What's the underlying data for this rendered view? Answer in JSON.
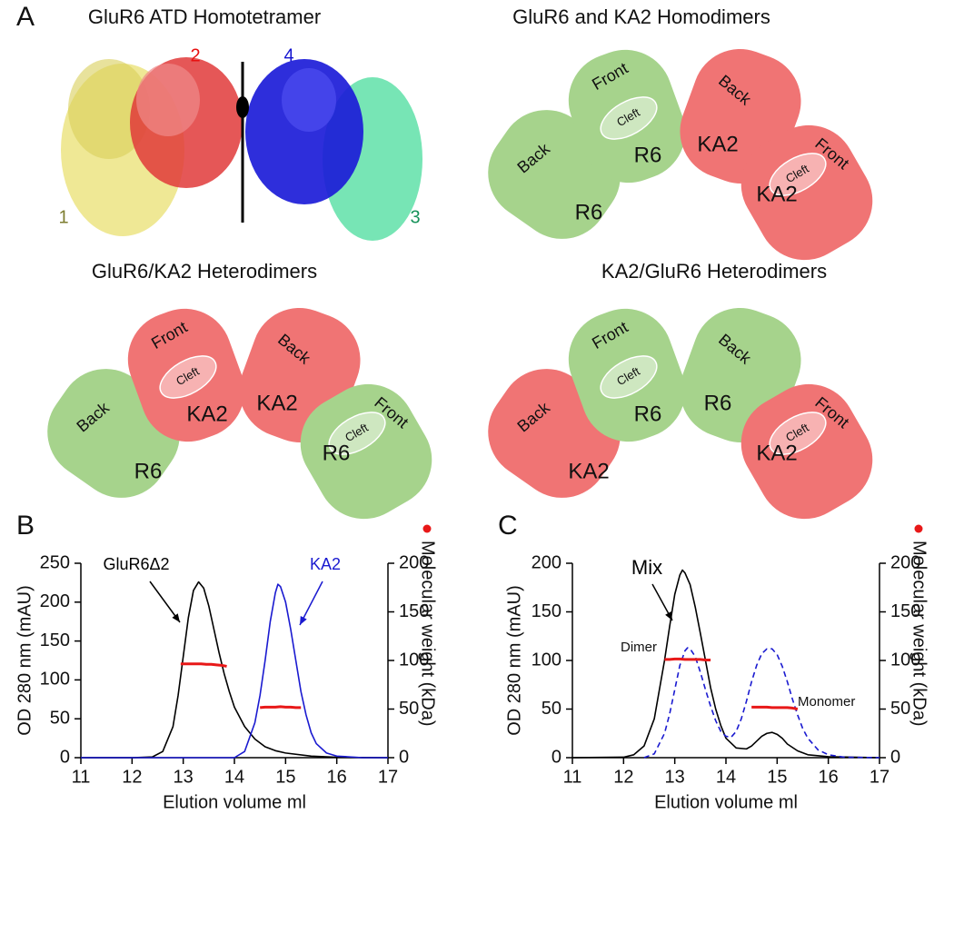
{
  "panel_letters": [
    "A",
    "B",
    "C"
  ],
  "tetramer": {
    "title": "GluR6 ATD Homotetramer",
    "subunits": [
      {
        "label": "1",
        "color": "#7d7d30"
      },
      {
        "label": "2",
        "color": "#e81010"
      },
      {
        "label": "3",
        "color": "#16925a"
      },
      {
        "label": "4",
        "color": "#1414d0"
      }
    ]
  },
  "dimer_panels": [
    {
      "title": "GluR6 and KA2 Homodimers",
      "subunits": [
        {
          "face": "Back",
          "name": "R6",
          "color": "#a6d38c"
        },
        {
          "face": "Front",
          "cleft": "Cleft",
          "name": "R6",
          "color": "#a6d38c"
        },
        {
          "face": "Back",
          "name": "KA2",
          "color": "#f07474"
        },
        {
          "face": "Front",
          "cleft": "Cleft",
          "name": "KA2",
          "color": "#f07474"
        }
      ]
    },
    {
      "title": "GluR6/KA2 Heterodimers",
      "subunits": [
        {
          "face": "Back",
          "name": "R6",
          "color": "#a6d38c"
        },
        {
          "face": "Front",
          "cleft": "Cleft",
          "name": "KA2",
          "color": "#f07474"
        },
        {
          "face": "Back",
          "name": "KA2",
          "color": "#f07474"
        },
        {
          "face": "Front",
          "cleft": "Cleft",
          "name": "R6",
          "color": "#a6d38c"
        }
      ]
    },
    {
      "title": "KA2/GluR6 Heterodimers",
      "subunits": [
        {
          "face": "Back",
          "name": "KA2",
          "color": "#f07474"
        },
        {
          "face": "Front",
          "cleft": "Cleft",
          "name": "R6",
          "color": "#a6d38c"
        },
        {
          "face": "Back",
          "name": "R6",
          "color": "#a6d38c"
        },
        {
          "face": "Front",
          "cleft": "Cleft",
          "name": "KA2",
          "color": "#f07474"
        }
      ]
    }
  ],
  "chart_data": [
    {
      "type": "line",
      "ylabel": "OD 280 nm (mAU)",
      "y2label": "Molecular weight (kDa)",
      "xlabel": "Elution volume ml",
      "xlim": [
        11,
        17
      ],
      "xticks": [
        11,
        12,
        13,
        14,
        15,
        16,
        17
      ],
      "ylim": [
        0,
        250
      ],
      "yticks": [
        0,
        50,
        100,
        150,
        200,
        250
      ],
      "y2lim": [
        0,
        200
      ],
      "y2ticks": [
        0,
        50,
        100,
        150,
        200
      ],
      "series": [
        {
          "name": "GluR6Δ2",
          "color": "#000000",
          "style": "solid",
          "x": [
            11,
            12,
            12.4,
            12.6,
            12.8,
            12.9,
            13.0,
            13.1,
            13.2,
            13.3,
            13.4,
            13.5,
            13.6,
            13.7,
            13.8,
            13.9,
            14.0,
            14.2,
            14.4,
            14.6,
            14.8,
            15.0,
            15.5,
            16.0,
            17
          ],
          "values": [
            0,
            0,
            1,
            8,
            40,
            80,
            130,
            180,
            215,
            226,
            218,
            195,
            165,
            135,
            108,
            85,
            65,
            40,
            24,
            14,
            9,
            6,
            2,
            0.5,
            0
          ]
        },
        {
          "name": "KA2",
          "color": "#1a1ad0",
          "style": "solid",
          "x": [
            11,
            14.0,
            14.2,
            14.4,
            14.5,
            14.6,
            14.7,
            14.8,
            14.85,
            14.9,
            15.0,
            15.1,
            15.2,
            15.3,
            15.4,
            15.5,
            15.6,
            15.8,
            16.0,
            16.5,
            17
          ],
          "values": [
            0,
            0,
            8,
            45,
            80,
            125,
            175,
            212,
            223,
            220,
            200,
            165,
            125,
            85,
            55,
            32,
            18,
            6,
            2,
            0,
            0
          ]
        },
        {
          "color": "#e81818",
          "style": "thick",
          "axis": "y2",
          "x": [
            12.95,
            13.05,
            13.15,
            13.25,
            13.35,
            13.45,
            13.55,
            13.65,
            13.75,
            13.85
          ],
          "values": [
            96.5,
            96.5,
            96.5,
            96.5,
            96.5,
            96,
            96,
            95.5,
            95,
            94
          ]
        },
        {
          "color": "#e81818",
          "style": "thick",
          "axis": "y2",
          "x": [
            14.5,
            14.6,
            14.7,
            14.8,
            14.9,
            15.0,
            15.1,
            15.2,
            15.3
          ],
          "values": [
            51.5,
            52,
            52,
            52,
            52.5,
            52,
            52,
            51.5,
            51.5
          ]
        }
      ],
      "annotations": []
    },
    {
      "type": "line",
      "ylabel": "OD 280 nm (mAU)",
      "y2label": "Molecular weight (kDa)",
      "xlabel": "Elution volume ml",
      "xlim": [
        11,
        17
      ],
      "xticks": [
        11,
        12,
        13,
        14,
        15,
        16,
        17
      ],
      "ylim": [
        0,
        200
      ],
      "yticks": [
        0,
        50,
        100,
        150,
        200
      ],
      "y2lim": [
        0,
        200
      ],
      "y2ticks": [
        0,
        50,
        100,
        150,
        200
      ],
      "series": [
        {
          "name": "Mix",
          "color": "#000000",
          "style": "solid",
          "x": [
            11,
            12.0,
            12.2,
            12.4,
            12.6,
            12.8,
            12.9,
            13.0,
            13.1,
            13.15,
            13.2,
            13.3,
            13.4,
            13.5,
            13.6,
            13.7,
            13.8,
            13.9,
            14.0,
            14.2,
            14.4,
            14.5,
            14.6,
            14.7,
            14.8,
            14.9,
            15.0,
            15.1,
            15.2,
            15.4,
            15.6,
            16.0,
            17
          ],
          "values": [
            0,
            0.5,
            3,
            12,
            40,
            100,
            135,
            168,
            188,
            193,
            190,
            178,
            155,
            128,
            100,
            72,
            50,
            33,
            20,
            10,
            9,
            12,
            17,
            22,
            25,
            26,
            24,
            20,
            14,
            7,
            3,
            1,
            0
          ]
        },
        {
          "color": "#1a1ad0",
          "style": "dashed",
          "x": [
            12.4,
            12.6,
            12.8,
            12.9,
            13.0,
            13.1,
            13.2,
            13.25,
            13.3,
            13.4,
            13.5,
            13.6,
            13.7,
            13.8,
            13.9,
            14.0,
            14.1,
            14.2,
            14.3,
            14.4,
            14.5,
            14.6,
            14.7,
            14.8,
            14.9,
            15.0,
            15.1,
            15.2,
            15.3,
            15.4,
            15.5,
            15.6,
            15.8,
            16.0,
            16.3,
            17
          ],
          "values": [
            0,
            4,
            25,
            45,
            70,
            95,
            110,
            113,
            112,
            104,
            88,
            70,
            53,
            38,
            27,
            22,
            21,
            27,
            40,
            58,
            78,
            95,
            107,
            112,
            112,
            106,
            94,
            78,
            60,
            44,
            30,
            20,
            8,
            3,
            0.5,
            0
          ]
        },
        {
          "color": "#e81818",
          "style": "thick",
          "axis": "y2",
          "x": [
            12.8,
            12.9,
            13.0,
            13.1,
            13.2,
            13.3,
            13.4,
            13.5,
            13.6,
            13.7
          ],
          "values": [
            101,
            101,
            101.5,
            101.5,
            101,
            101,
            101,
            101,
            100.5,
            100.5
          ]
        },
        {
          "color": "#e81818",
          "style": "thick",
          "axis": "y2",
          "x": [
            14.5,
            14.6,
            14.7,
            14.8,
            14.9,
            15.0,
            15.1,
            15.2,
            15.3,
            15.4
          ],
          "values": [
            52,
            52,
            52,
            52,
            51.5,
            51.5,
            51.5,
            51.5,
            51,
            50
          ]
        }
      ],
      "annotations": [
        "Dimer",
        "Monomer"
      ]
    }
  ]
}
